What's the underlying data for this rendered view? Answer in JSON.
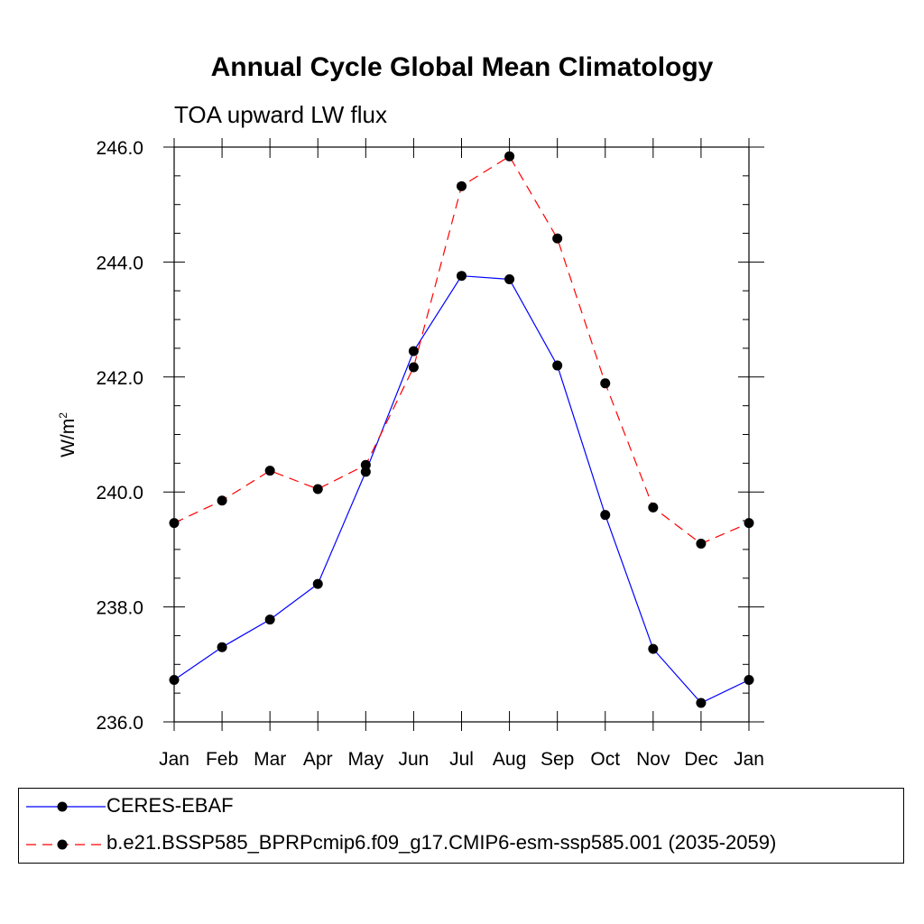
{
  "chart_data": {
    "type": "line",
    "title": "Annual Cycle Global Mean Climatology",
    "subtitle": "TOA upward LW flux",
    "ylabel": "W/m",
    "ylabel_sup": "2",
    "xlabel": "",
    "categories": [
      "Jan",
      "Feb",
      "Mar",
      "Apr",
      "May",
      "Jun",
      "Jul",
      "Aug",
      "Sep",
      "Oct",
      "Nov",
      "Dec",
      "Jan"
    ],
    "ylim": [
      236.0,
      246.0
    ],
    "yticks": [
      "236.0",
      "238.0",
      "240.0",
      "242.0",
      "244.0",
      "246.0"
    ],
    "series": [
      {
        "name": "CERES-EBAF",
        "color": "#0000ff",
        "dash": "solid",
        "values": [
          236.73,
          237.3,
          237.78,
          238.4,
          240.35,
          242.45,
          243.76,
          243.7,
          242.2,
          239.6,
          237.27,
          236.33,
          236.73
        ]
      },
      {
        "name": "b.e21.BSSP585_BPRPcmip6.f09_g17.CMIP6-esm-ssp585.001 (2035-2059)",
        "color": "#ff0000",
        "dash": "dashed",
        "values": [
          239.46,
          239.85,
          240.37,
          240.05,
          240.47,
          242.17,
          245.32,
          245.84,
          244.41,
          241.89,
          239.73,
          239.1,
          239.46
        ]
      }
    ],
    "legend_placement": "bottom"
  }
}
